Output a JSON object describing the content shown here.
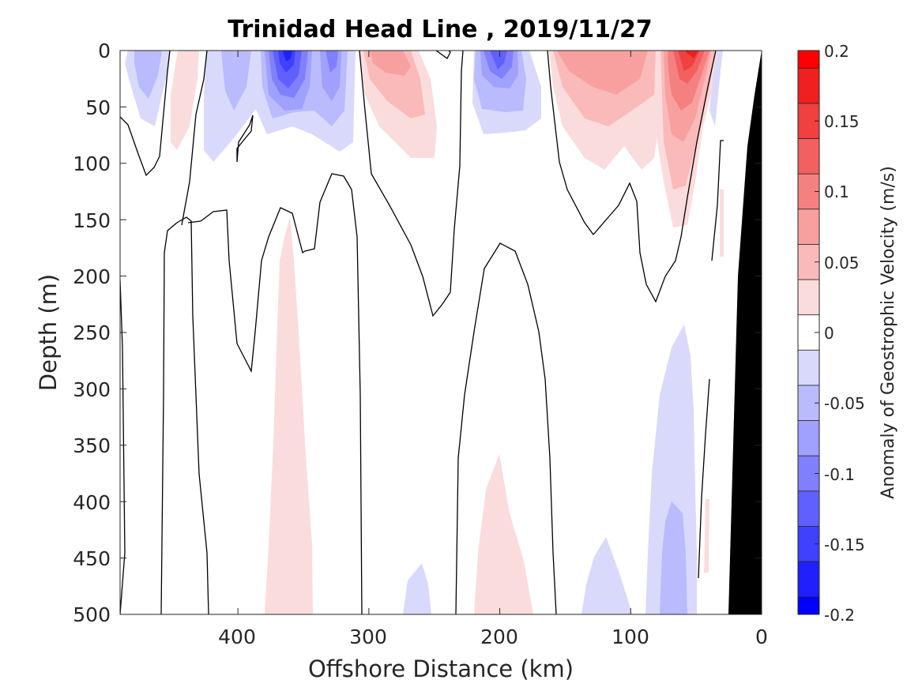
{
  "chart_data": {
    "type": "heatmap",
    "title": "Trinidad Head Line , 2019/11/27",
    "xlabel": "Offshore Distance (km)",
    "ylabel": "Depth (m)",
    "xlim": [
      490,
      0
    ],
    "ylim": [
      0,
      500
    ],
    "x_reversed": true,
    "y_reversed": true,
    "xticks": [
      400,
      300,
      200,
      100,
      0
    ],
    "xtick_labels": [
      "400",
      "300",
      "200",
      "100",
      "0"
    ],
    "yticks": [
      0,
      50,
      100,
      150,
      200,
      250,
      300,
      350,
      400,
      450,
      500
    ],
    "ytick_labels": [
      "0",
      "50",
      "100",
      "150",
      "200",
      "250",
      "300",
      "350",
      "400",
      "450",
      "500"
    ],
    "grid": false,
    "colorbar": {
      "label": "Anomaly of Geostrophic Velocity (m/s)",
      "range": [
        -0.2,
        0.2
      ],
      "levels": [
        -0.2,
        -0.175,
        -0.15,
        -0.125,
        -0.1,
        -0.075,
        -0.05,
        -0.025,
        0,
        0.025,
        0.05,
        0.075,
        0.1,
        0.125,
        0.15,
        0.175,
        0.2
      ],
      "colors": [
        "#0000ff",
        "#2020ff",
        "#4040ff",
        "#6060ff",
        "#8080ff",
        "#a0a0ff",
        "#babaff",
        "#d9d9fb",
        "#ffffff",
        "#fbdcdc",
        "#fbbaba",
        "#f8a0a0",
        "#f58080",
        "#f26060",
        "#f04040",
        "#f02020",
        "#ff0000"
      ],
      "ticks": [
        -0.2,
        -0.15,
        -0.1,
        -0.05,
        0,
        0.05,
        0.1,
        0.15,
        0.2
      ],
      "tick_labels": [
        "-0.2",
        "-0.15",
        "-0.1",
        "-0.05",
        "0",
        "0.05",
        "0.1",
        "0.15",
        "0.2"
      ]
    },
    "bathymetry": {
      "color": "#000000",
      "points": [
        [
          0,
          0
        ],
        [
          7,
          40
        ],
        [
          15,
          90
        ],
        [
          20,
          200
        ],
        [
          25,
          400
        ],
        [
          29,
          500
        ],
        [
          0,
          500
        ]
      ]
    },
    "fields": [
      {
        "sign": "negative",
        "center_km": 470,
        "center_depth_m": 20,
        "peak": -0.05
      },
      {
        "sign": "positive",
        "center_km": 440,
        "center_depth_m": 40,
        "peak": 0.025
      },
      {
        "sign": "negative",
        "center_km": 400,
        "center_depth_m": 40,
        "peak": -0.05
      },
      {
        "sign": "negative",
        "center_km": 362,
        "center_depth_m": 20,
        "peak": -0.175
      },
      {
        "sign": "negative",
        "center_km": 330,
        "center_depth_m": 30,
        "peak": -0.1
      },
      {
        "sign": "positive",
        "center_km": 285,
        "center_depth_m": 40,
        "peak": 0.1
      },
      {
        "sign": "negative",
        "center_km": 215,
        "center_depth_m": 30,
        "peak": -0.125
      },
      {
        "sign": "positive",
        "center_km": 115,
        "center_depth_m": 40,
        "peak": 0.075
      },
      {
        "sign": "positive",
        "center_km": 60,
        "center_depth_m": 15,
        "peak": 0.15
      },
      {
        "sign": "positive",
        "center_km": 362,
        "center_depth_m": 400,
        "peak": 0.025
      },
      {
        "sign": "positive",
        "center_km": 200,
        "center_depth_m": 440,
        "peak": 0.025
      },
      {
        "sign": "negative",
        "center_km": 70,
        "center_depth_m": 400,
        "peak": -0.075
      },
      {
        "sign": "negative",
        "center_km": 110,
        "center_depth_m": 480,
        "peak": -0.05
      },
      {
        "sign": "negative",
        "center_km": 256,
        "center_depth_m": 485,
        "peak": -0.05
      }
    ]
  }
}
